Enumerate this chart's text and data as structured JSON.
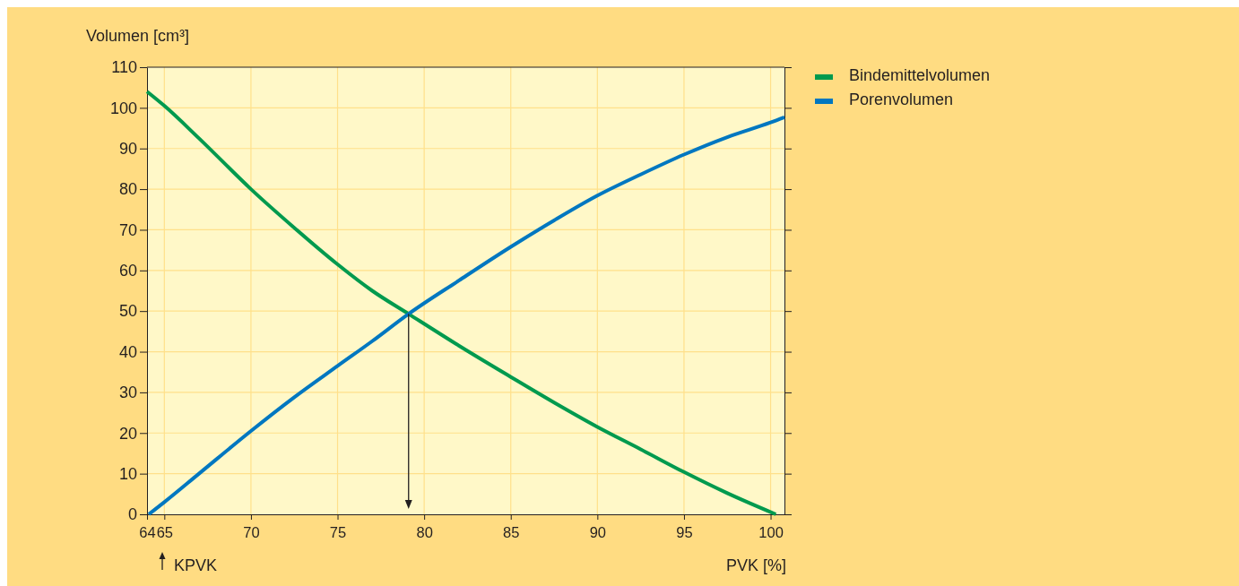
{
  "chart_data": {
    "type": "line",
    "xlabel": "PVK [%]",
    "ylabel": "Volumen [cm³]",
    "xlim": [
      64,
      100.8
    ],
    "xticks": [
      64,
      65,
      70,
      75,
      80,
      85,
      90,
      95,
      100
    ],
    "ylim": [
      0,
      110
    ],
    "yticks": [
      0,
      10,
      20,
      30,
      40,
      50,
      60,
      70,
      80,
      90,
      100,
      110
    ],
    "grid": true,
    "legend": "top right",
    "marker": "none",
    "line_style": "solid",
    "series": [
      {
        "name": "Bindemittelvolumen",
        "color": "#009a4e",
        "x": [
          64,
          65,
          67,
          70,
          72.5,
          75,
          77,
          79.1,
          82,
          85,
          87.5,
          90,
          92.5,
          95,
          97.5,
          100.3
        ],
        "values": [
          104,
          100.5,
          92.5,
          80,
          70.5,
          61.5,
          55,
          49.3,
          41.5,
          33.8,
          27.5,
          21.5,
          16,
          10.4,
          5.2,
          0
        ]
      },
      {
        "name": "Porenvolumen",
        "color": "#0077c0",
        "x": [
          64.1,
          65,
          67,
          70,
          72.5,
          75,
          77,
          79.1,
          82,
          85,
          87.5,
          90,
          92.5,
          95,
          97.5,
          100,
          100.8
        ],
        "values": [
          0,
          3,
          10,
          20.5,
          28.8,
          36.5,
          42.6,
          49.3,
          57.5,
          65.8,
          72.3,
          78.4,
          83.6,
          88.5,
          92.8,
          96.4,
          97.7
        ]
      }
    ],
    "ref_lines": [
      {
        "axis": "x",
        "value": 79.1
      }
    ],
    "annotations": [
      "KPVK"
    ]
  }
}
